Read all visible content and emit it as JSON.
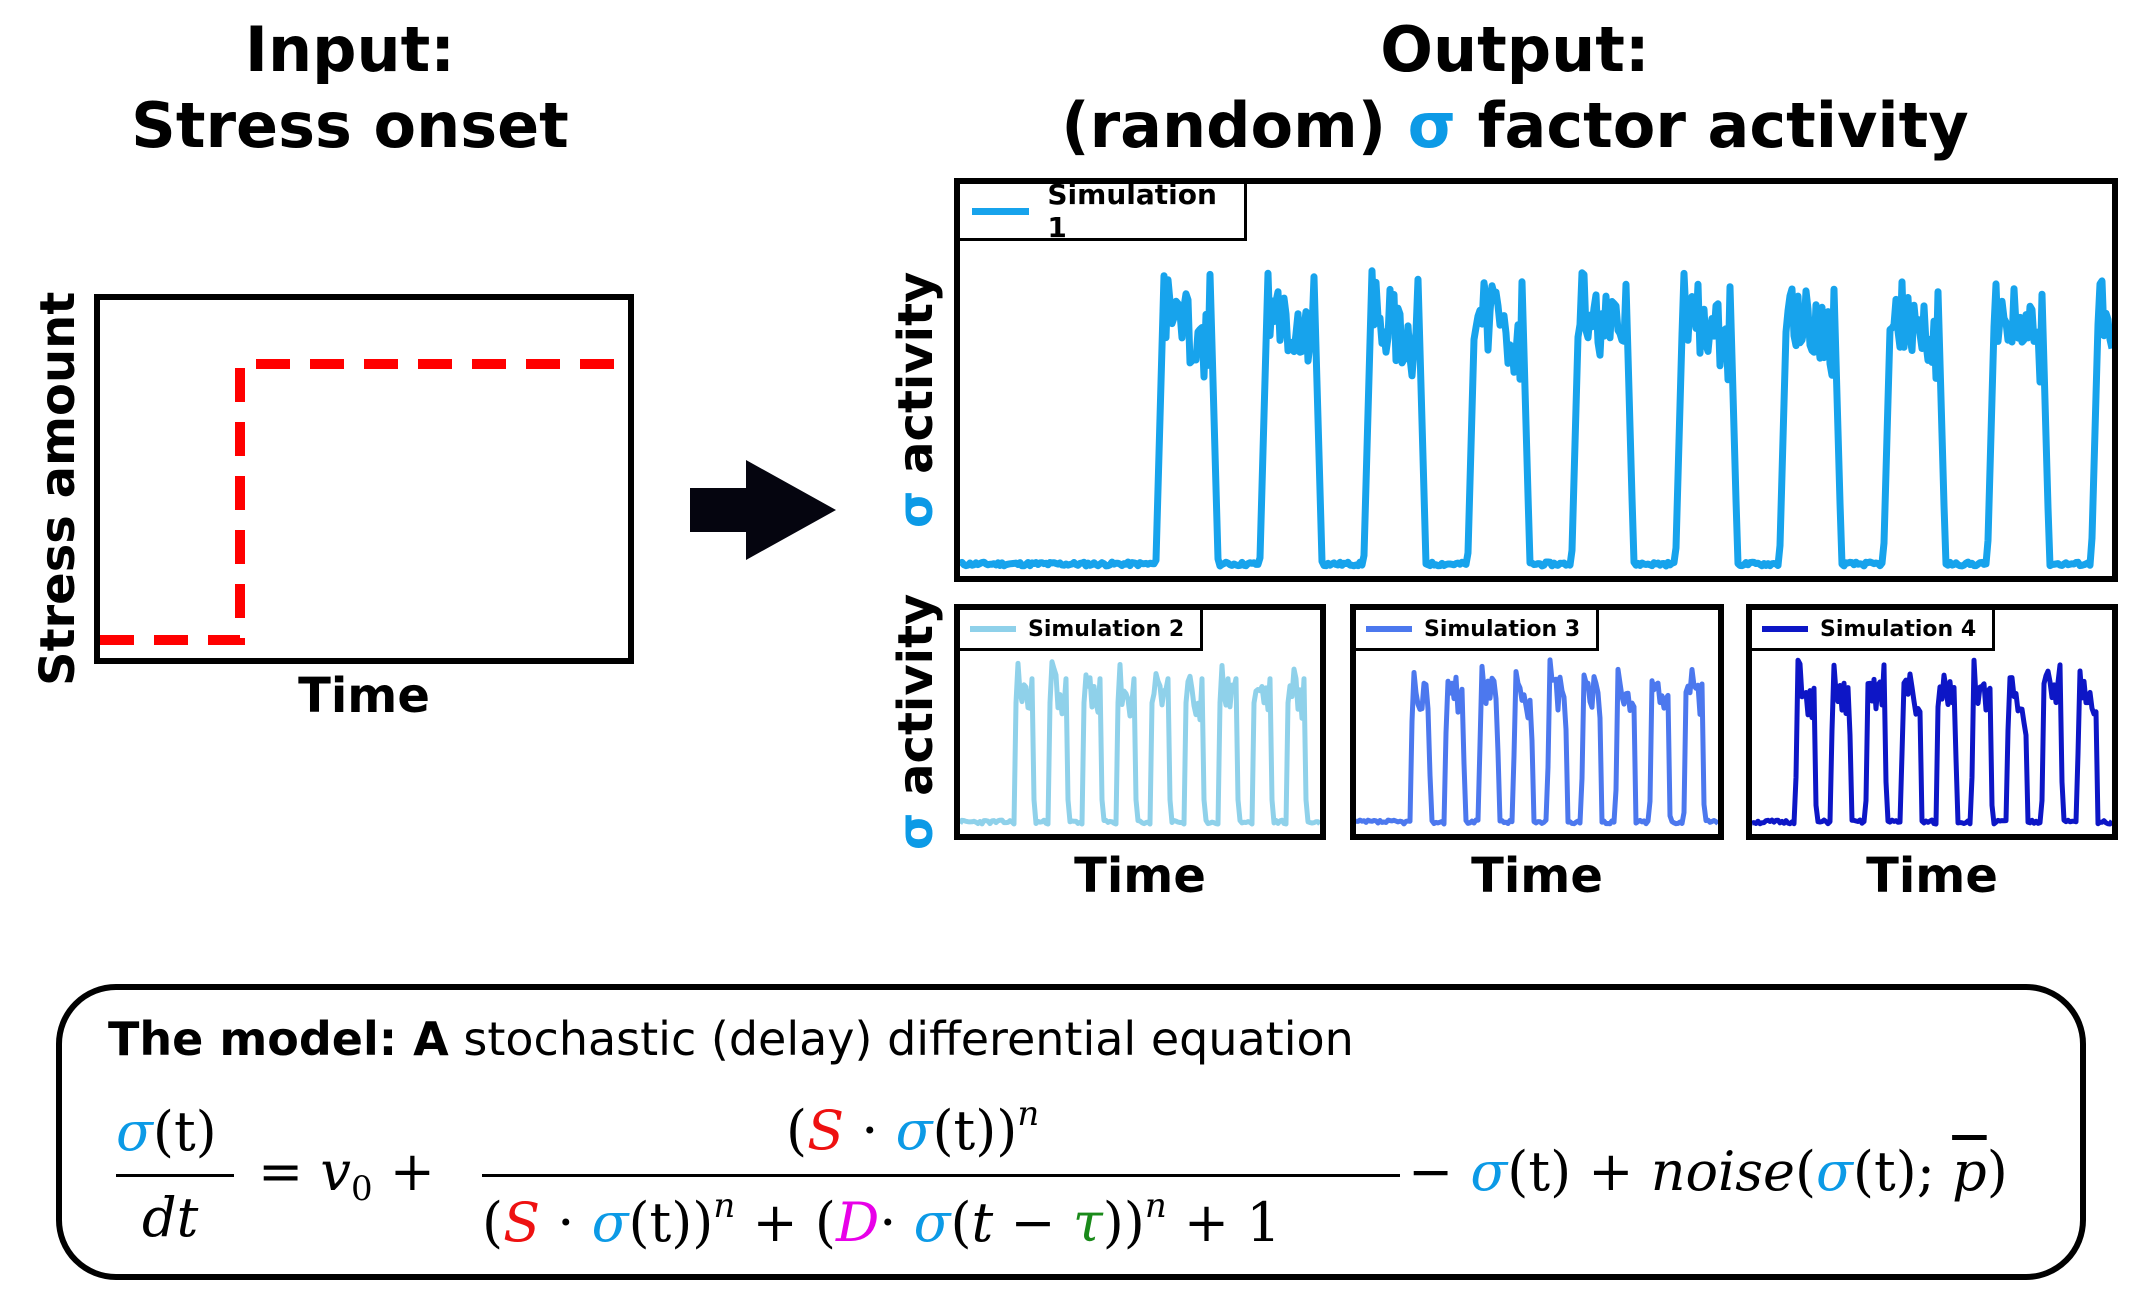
{
  "input": {
    "title_line1": "Input:",
    "title_line2": "Stress onset",
    "y_label": "Stress amount",
    "x_label": "Time",
    "step_color": "#ff0000"
  },
  "arrow": {
    "icon": "right-arrow-icon",
    "color": "#05050f"
  },
  "output": {
    "title_line1": "Output:",
    "title_line2_prefix": "(random)",
    "title_line2_sigma": "σ",
    "title_line2_suffix": "factor activity",
    "sigma_color": "#0c9ae6",
    "y_label_sigma": "σ",
    "y_label_text": "activity",
    "x_label": "Time",
    "simulations": [
      {
        "name": "Simulation 1",
        "color": "#17a3ec"
      },
      {
        "name": "Simulation 2",
        "color": "#8fd1ea"
      },
      {
        "name": "Simulation 3",
        "color": "#4c78ee"
      },
      {
        "name": "Simulation 4",
        "color": "#0d16c6"
      }
    ]
  },
  "model": {
    "heading_bold": "The model: A",
    "heading_rest": " stochastic (delay) differential equation",
    "colors": {
      "sigma": "#0c9ae6",
      "S": "#ee1111",
      "D": "#e800e8",
      "tau": "#1a8a1a"
    },
    "eq": {
      "sigma": "σ",
      "t": "(t)",
      "dt": "dt",
      "equals": "= ",
      "v": "v",
      "v_sub": "0",
      "plus": " + ",
      "S": "S",
      "dot": " · ",
      "n": "n",
      "D": "D",
      "tau": "τ",
      "minus": " − ",
      "one": "1",
      "noise": "noise",
      "pbar": "p"
    }
  }
}
